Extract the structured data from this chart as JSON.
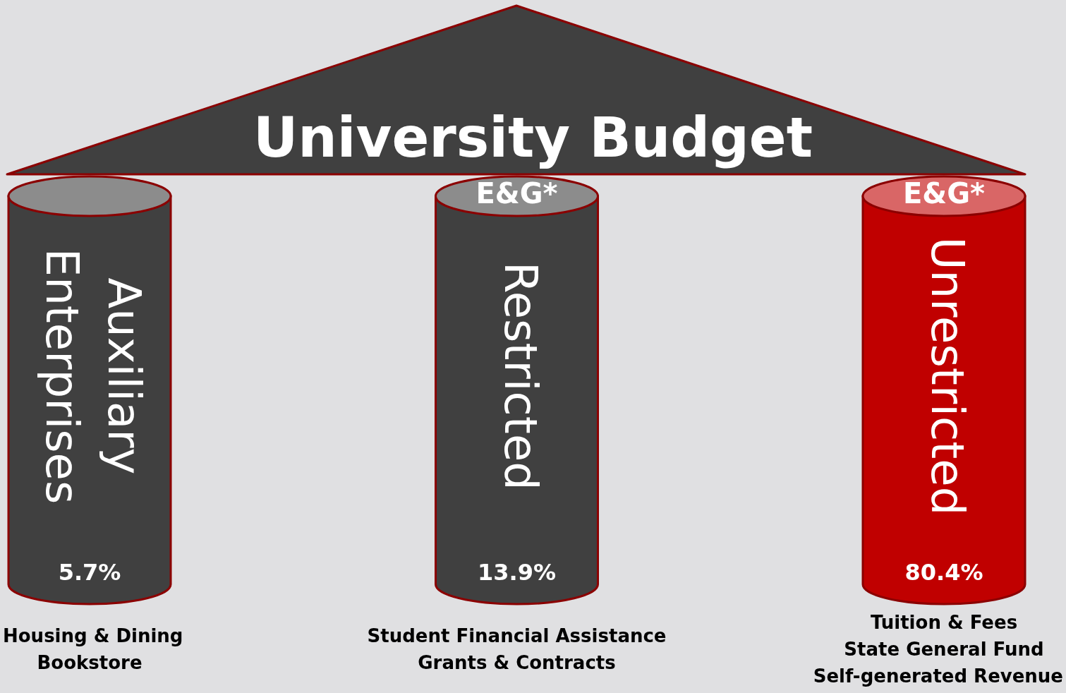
{
  "chart_data": {
    "type": "other",
    "title": "University Budget",
    "categories": [
      "Auxiliary Enterprises",
      "Restricted",
      "Unrestricted"
    ],
    "values": [
      5.7,
      13.9,
      80.4
    ],
    "value_labels": [
      "5.7%",
      "13.9%",
      "80.4%"
    ],
    "colors": [
      "#404040",
      "#404040",
      "#c00000"
    ],
    "annotations": [
      {
        "text": "Housing & Dining\nBookstore",
        "x": "Auxiliary Enterprises"
      },
      {
        "text": "Student Financial Assistance\nGrants & Contracts",
        "x": "Restricted"
      },
      {
        "text": "Tuition & Fees\nState General Fund\nSelf-generated Revenue",
        "x": "Unrestricted"
      },
      {
        "text": "E&G*",
        "x": "Restricted"
      },
      {
        "text": "E&G*",
        "x": "Unrestricted"
      }
    ]
  }
}
